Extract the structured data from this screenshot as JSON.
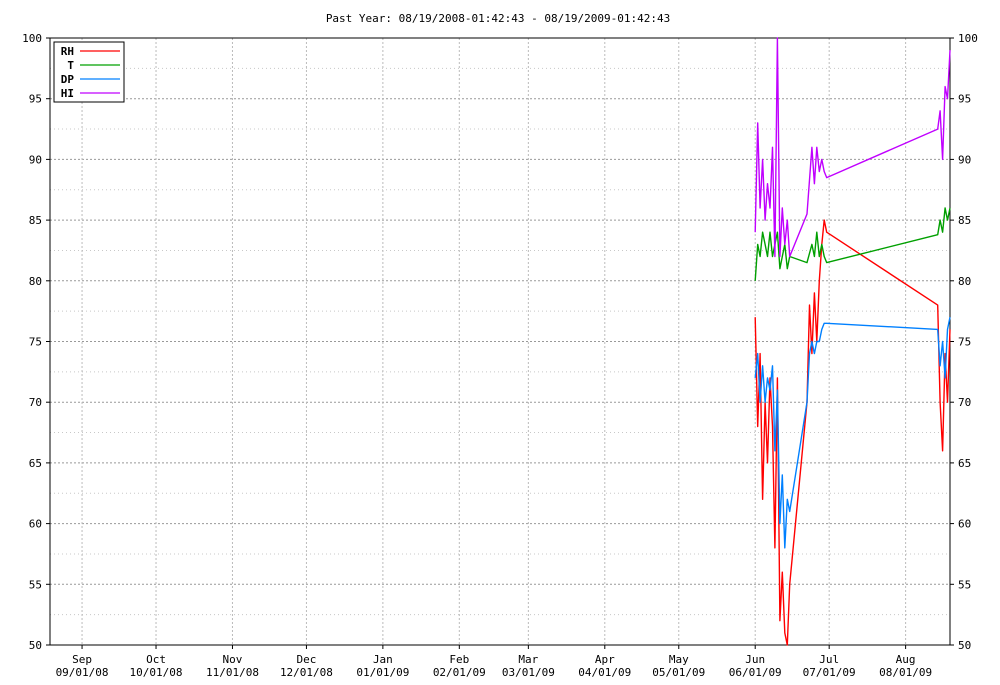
{
  "chart_data": {
    "type": "line",
    "title": "Past Year: 08/19/2008-01:42:43 - 08/19/2009-01:42:43",
    "xlabel": "",
    "ylabel": "",
    "ylim": [
      50,
      100
    ],
    "xlim": [
      "2008-08-19",
      "2009-08-19"
    ],
    "y_ticks": [
      50,
      55,
      60,
      65,
      70,
      75,
      80,
      85,
      90,
      95,
      100
    ],
    "x_ticks": [
      {
        "date": "2008-09-01",
        "month": "Sep",
        "label": "09/01/08"
      },
      {
        "date": "2008-10-01",
        "month": "Oct",
        "label": "10/01/08"
      },
      {
        "date": "2008-11-01",
        "month": "Nov",
        "label": "11/01/08"
      },
      {
        "date": "2008-12-01",
        "month": "Dec",
        "label": "12/01/08"
      },
      {
        "date": "2009-01-01",
        "month": "Jan",
        "label": "01/01/09"
      },
      {
        "date": "2009-02-01",
        "month": "Feb",
        "label": "02/01/09"
      },
      {
        "date": "2009-03-01",
        "month": "Mar",
        "label": "03/01/09"
      },
      {
        "date": "2009-04-01",
        "month": "Apr",
        "label": "04/01/09"
      },
      {
        "date": "2009-05-01",
        "month": "May",
        "label": "05/01/09"
      },
      {
        "date": "2009-06-01",
        "month": "Jun",
        "label": "06/01/09"
      },
      {
        "date": "2009-07-01",
        "month": "Jul",
        "label": "07/01/09"
      },
      {
        "date": "2009-08-01",
        "month": "Aug",
        "label": "08/01/09"
      }
    ],
    "grid": true,
    "legend_position": "top-left",
    "series": [
      {
        "name": "RH",
        "color": "#ff0000",
        "points": [
          [
            "2009-06-01",
            77
          ],
          [
            "2009-06-02",
            68
          ],
          [
            "2009-06-03",
            74
          ],
          [
            "2009-06-04",
            62
          ],
          [
            "2009-06-05",
            70
          ],
          [
            "2009-06-06",
            65
          ],
          [
            "2009-06-07",
            72
          ],
          [
            "2009-06-08",
            68
          ],
          [
            "2009-06-09",
            58
          ],
          [
            "2009-06-10",
            72
          ],
          [
            "2009-06-11",
            52
          ],
          [
            "2009-06-12",
            56
          ],
          [
            "2009-06-13",
            51
          ],
          [
            "2009-06-14",
            50
          ],
          [
            "2009-06-15",
            55
          ],
          [
            "2009-06-22",
            70
          ],
          [
            "2009-06-23",
            78
          ],
          [
            "2009-06-24",
            74
          ],
          [
            "2009-06-25",
            79
          ],
          [
            "2009-06-26",
            75
          ],
          [
            "2009-06-27",
            80
          ],
          [
            "2009-06-28",
            83
          ],
          [
            "2009-06-29",
            85
          ],
          [
            "2009-06-30",
            84
          ],
          [
            "2009-08-14",
            78
          ],
          [
            "2009-08-15",
            70
          ],
          [
            "2009-08-16",
            66
          ],
          [
            "2009-08-17",
            74
          ],
          [
            "2009-08-18",
            70
          ],
          [
            "2009-08-19",
            76
          ]
        ]
      },
      {
        "name": "T",
        "color": "#00a000",
        "points": [
          [
            "2009-06-01",
            80
          ],
          [
            "2009-06-02",
            83
          ],
          [
            "2009-06-03",
            82
          ],
          [
            "2009-06-04",
            84
          ],
          [
            "2009-06-05",
            83
          ],
          [
            "2009-06-06",
            82
          ],
          [
            "2009-06-07",
            84
          ],
          [
            "2009-06-08",
            82
          ],
          [
            "2009-06-09",
            83
          ],
          [
            "2009-06-10",
            84
          ],
          [
            "2009-06-11",
            81
          ],
          [
            "2009-06-12",
            82
          ],
          [
            "2009-06-13",
            83
          ],
          [
            "2009-06-14",
            81
          ],
          [
            "2009-06-15",
            82
          ],
          [
            "2009-06-22",
            81.5
          ],
          [
            "2009-06-24",
            83
          ],
          [
            "2009-06-25",
            82
          ],
          [
            "2009-06-26",
            84
          ],
          [
            "2009-06-27",
            82
          ],
          [
            "2009-06-28",
            83
          ],
          [
            "2009-06-29",
            82
          ],
          [
            "2009-06-30",
            81.5
          ],
          [
            "2009-08-14",
            83.8
          ],
          [
            "2009-08-15",
            85
          ],
          [
            "2009-08-16",
            84
          ],
          [
            "2009-08-17",
            86
          ],
          [
            "2009-08-18",
            85
          ],
          [
            "2009-08-19",
            86
          ]
        ]
      },
      {
        "name": "DP",
        "color": "#0080ff",
        "points": [
          [
            "2009-06-01",
            72
          ],
          [
            "2009-06-02",
            74
          ],
          [
            "2009-06-03",
            70
          ],
          [
            "2009-06-04",
            73
          ],
          [
            "2009-06-05",
            70
          ],
          [
            "2009-06-06",
            72
          ],
          [
            "2009-06-07",
            71
          ],
          [
            "2009-06-08",
            73
          ],
          [
            "2009-06-09",
            66
          ],
          [
            "2009-06-10",
            71
          ],
          [
            "2009-06-11",
            60
          ],
          [
            "2009-06-12",
            64
          ],
          [
            "2009-06-13",
            58
          ],
          [
            "2009-06-14",
            62
          ],
          [
            "2009-06-15",
            61
          ],
          [
            "2009-06-22",
            70
          ],
          [
            "2009-06-23",
            74
          ],
          [
            "2009-06-24",
            75
          ],
          [
            "2009-06-25",
            74
          ],
          [
            "2009-06-26",
            75
          ],
          [
            "2009-06-27",
            75
          ],
          [
            "2009-06-28",
            76
          ],
          [
            "2009-06-29",
            76.5
          ],
          [
            "2009-06-30",
            76.5
          ],
          [
            "2009-08-14",
            76
          ],
          [
            "2009-08-15",
            73
          ],
          [
            "2009-08-16",
            75
          ],
          [
            "2009-08-17",
            72
          ],
          [
            "2009-08-18",
            76
          ],
          [
            "2009-08-19",
            77
          ]
        ]
      },
      {
        "name": "HI",
        "color": "#c000ff",
        "points": [
          [
            "2009-06-01",
            84
          ],
          [
            "2009-06-02",
            93
          ],
          [
            "2009-06-03",
            86
          ],
          [
            "2009-06-04",
            90
          ],
          [
            "2009-06-05",
            85
          ],
          [
            "2009-06-06",
            88
          ],
          [
            "2009-06-07",
            86
          ],
          [
            "2009-06-08",
            91
          ],
          [
            "2009-06-09",
            82
          ],
          [
            "2009-06-10",
            100
          ],
          [
            "2009-06-11",
            82
          ],
          [
            "2009-06-12",
            86
          ],
          [
            "2009-06-13",
            83
          ],
          [
            "2009-06-14",
            85
          ],
          [
            "2009-06-15",
            82
          ],
          [
            "2009-06-22",
            85.5
          ],
          [
            "2009-06-24",
            91
          ],
          [
            "2009-06-25",
            88
          ],
          [
            "2009-06-26",
            91
          ],
          [
            "2009-06-27",
            89
          ],
          [
            "2009-06-28",
            90
          ],
          [
            "2009-06-29",
            89
          ],
          [
            "2009-06-30",
            88.5
          ],
          [
            "2009-08-14",
            92.5
          ],
          [
            "2009-08-15",
            94
          ],
          [
            "2009-08-16",
            90
          ],
          [
            "2009-08-17",
            96
          ],
          [
            "2009-08-18",
            95
          ],
          [
            "2009-08-19",
            99
          ]
        ]
      }
    ]
  }
}
